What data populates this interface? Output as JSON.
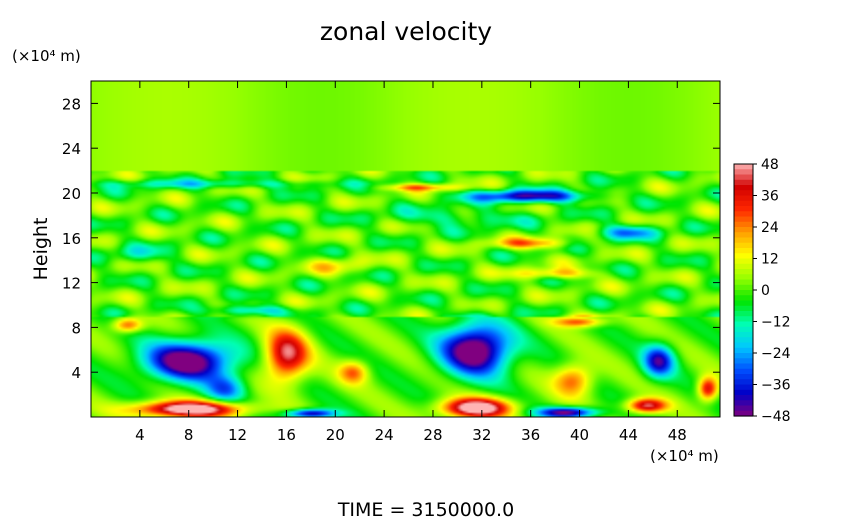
{
  "chart_data": {
    "type": "heatmap",
    "title": "zonal velocity",
    "ylabel": "Height",
    "xlabel": "",
    "x_unit": "(×10⁴ m)",
    "y_unit": "(×10⁴ m)",
    "xlim": [
      0,
      51.5
    ],
    "ylim": [
      0,
      30
    ],
    "x_ticks": [
      4,
      8,
      12,
      16,
      20,
      24,
      28,
      32,
      36,
      40,
      44,
      48
    ],
    "y_ticks": [
      4,
      8,
      12,
      16,
      20,
      24,
      28
    ],
    "x_tick_labels": [
      "4",
      "8",
      "12",
      "16",
      "20",
      "24",
      "28",
      "32",
      "36",
      "40",
      "44",
      "48"
    ],
    "y_tick_labels": [
      "4",
      "8",
      "12",
      "16",
      "20",
      "24",
      "28"
    ],
    "colorbar": {
      "min": -48,
      "max": 48,
      "ticks": [
        48,
        36,
        24,
        12,
        0,
        -12,
        -24,
        -36,
        -48
      ],
      "tick_labels": [
        "48",
        "36",
        "24",
        "12",
        "0",
        "−12",
        "−24",
        "−36",
        "−48"
      ],
      "colors": [
        "#800080",
        "#0000c8",
        "#0050ff",
        "#00c8ff",
        "#00ffb4",
        "#00e600",
        "#96ff00",
        "#ffff00",
        "#ffa000",
        "#ff2800",
        "#d20000",
        "#ffb4b4"
      ]
    },
    "field_features": [
      {
        "x": 8,
        "y": 5,
        "sx": 4.5,
        "sy": 2.2,
        "v": -55
      },
      {
        "x": 31.5,
        "y": 6,
        "sx": 3.5,
        "sy": 2.8,
        "v": -58
      },
      {
        "x": 46.5,
        "y": 5,
        "sx": 1.6,
        "sy": 1.8,
        "v": -40
      },
      {
        "x": 8,
        "y": 0.7,
        "sx": 5.5,
        "sy": 0.9,
        "v": 58
      },
      {
        "x": 31.5,
        "y": 0.8,
        "sx": 3.5,
        "sy": 1.1,
        "v": 58
      },
      {
        "x": 16,
        "y": 5.5,
        "sx": 2.2,
        "sy": 2.8,
        "v": 45
      },
      {
        "x": 21.5,
        "y": 4.0,
        "sx": 1.5,
        "sy": 1.3,
        "v": 25
      },
      {
        "x": 39.5,
        "y": 3.3,
        "sx": 2.0,
        "sy": 1.8,
        "v": 28
      },
      {
        "x": 40,
        "y": 8.5,
        "sx": 2.5,
        "sy": 0.6,
        "v": 30
      },
      {
        "x": 45.5,
        "y": 1.0,
        "sx": 2.0,
        "sy": 0.8,
        "v": 45
      },
      {
        "x": 50.5,
        "y": 2.5,
        "sx": 1.0,
        "sy": 1.3,
        "v": 40
      },
      {
        "x": 39,
        "y": 0.4,
        "sx": 3.0,
        "sy": 0.6,
        "v": -50
      },
      {
        "x": 18,
        "y": 0.3,
        "sx": 2.5,
        "sy": 0.5,
        "v": -45
      },
      {
        "x": 3,
        "y": 8.2,
        "sx": 1.5,
        "sy": 0.8,
        "v": 30
      },
      {
        "x": 11,
        "y": 2.5,
        "sx": 2.0,
        "sy": 1.5,
        "v": -25
      },
      {
        "x": 36,
        "y": 19.7,
        "sx": 6.0,
        "sy": 0.7,
        "v": -42
      },
      {
        "x": 27,
        "y": 20.5,
        "sx": 4.0,
        "sy": 0.4,
        "v": 22
      },
      {
        "x": 10,
        "y": 20.8,
        "sx": 12.0,
        "sy": 0.5,
        "v": -14
      },
      {
        "x": 36,
        "y": 15.5,
        "sx": 4.0,
        "sy": 0.6,
        "v": 22
      },
      {
        "x": 38,
        "y": 12.8,
        "sx": 4.0,
        "sy": 0.6,
        "v": 20
      },
      {
        "x": 13,
        "y": 9.5,
        "sx": 4.0,
        "sy": 0.6,
        "v": -22
      },
      {
        "x": 44,
        "y": 16.5,
        "sx": 3.0,
        "sy": 0.8,
        "v": -25
      },
      {
        "x": 30,
        "y": 17.8,
        "sx": 7.0,
        "sy": 1.0,
        "v": -12
      },
      {
        "x": 20,
        "y": 13.5,
        "sx": 3.0,
        "sy": 1.0,
        "v": 12
      },
      {
        "x": 4,
        "y": 14.5,
        "sx": 3.0,
        "sy": 1.0,
        "v": -12
      }
    ]
  },
  "footer": {
    "time_text": "TIME = 3150000.0"
  }
}
